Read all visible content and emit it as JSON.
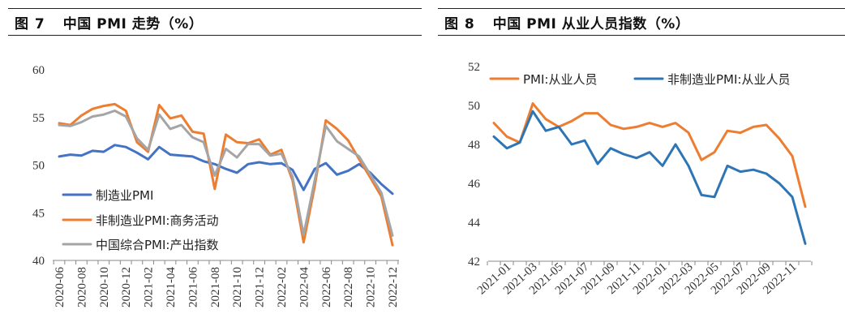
{
  "charts": [
    {
      "fig_num": "图 7",
      "title": "中国 PMI 走势（%）",
      "chart_data": {
        "type": "line",
        "ylim": [
          40,
          60
        ],
        "yticks": [
          40,
          45,
          50,
          55,
          60
        ],
        "xlabels": [
          "2020-06",
          "2020-08",
          "2020-10",
          "2020-12",
          "2021-02",
          "2021-04",
          "2021-06",
          "2021-08",
          "2021-10",
          "2021-12",
          "2022-02",
          "2022-04",
          "2022-06",
          "2022-08",
          "2022-10",
          "2022-12"
        ],
        "x": [
          "2020-06",
          "2020-07",
          "2020-08",
          "2020-09",
          "2020-10",
          "2020-11",
          "2020-12",
          "2021-01",
          "2021-02",
          "2021-03",
          "2021-04",
          "2021-05",
          "2021-06",
          "2021-07",
          "2021-08",
          "2021-09",
          "2021-10",
          "2021-11",
          "2021-12",
          "2022-01",
          "2022-02",
          "2022-03",
          "2022-04",
          "2022-05",
          "2022-06",
          "2022-07",
          "2022-08",
          "2022-09",
          "2022-10",
          "2022-11",
          "2022-12"
        ],
        "series": [
          {
            "name": "制造业PMI",
            "color": "#4472C4",
            "values": [
              50.9,
              51.1,
              51.0,
              51.5,
              51.4,
              52.1,
              51.9,
              51.3,
              50.6,
              51.9,
              51.1,
              51.0,
              50.9,
              50.4,
              50.1,
              49.6,
              49.2,
              50.1,
              50.3,
              50.1,
              50.2,
              49.5,
              47.4,
              49.6,
              50.2,
              49.0,
              49.4,
              50.1,
              49.2,
              48.0,
              47.0
            ]
          },
          {
            "name": "非制造业PMI:商务活动",
            "color": "#ED7D31",
            "values": [
              54.4,
              54.2,
              55.2,
              55.9,
              56.2,
              56.4,
              55.7,
              52.4,
              51.4,
              56.3,
              54.9,
              55.2,
              53.5,
              53.3,
              47.5,
              53.2,
              52.4,
              52.3,
              52.7,
              51.1,
              51.6,
              48.4,
              41.9,
              47.8,
              54.7,
              53.8,
              52.6,
              50.6,
              48.7,
              46.7,
              41.6
            ]
          },
          {
            "name": "中国综合PMI:产出指数",
            "color": "#A5A5A5",
            "values": [
              54.2,
              54.1,
              54.5,
              55.1,
              55.3,
              55.7,
              55.1,
              52.8,
              51.6,
              55.3,
              53.8,
              54.2,
              52.9,
              52.4,
              48.9,
              51.7,
              50.8,
              52.2,
              52.2,
              51.0,
              51.2,
              48.8,
              42.7,
              48.4,
              54.1,
              52.5,
              51.7,
              50.9,
              49.0,
              47.1,
              42.6
            ]
          }
        ]
      }
    },
    {
      "fig_num": "图 8",
      "title": "中国 PMI 从业人员指数（%）",
      "chart_data": {
        "type": "line",
        "ylim": [
          42,
          52
        ],
        "yticks": [
          42,
          44,
          46,
          48,
          50,
          52
        ],
        "xlabels": [
          "2021-01",
          "2021-03",
          "2021-05",
          "2021-07",
          "2021-09",
          "2021-11",
          "2022-01",
          "2022-03",
          "2022-05",
          "2022-07",
          "2022-09",
          "2022-11"
        ],
        "x": [
          "2020-12",
          "2021-01",
          "2021-02",
          "2021-03",
          "2021-04",
          "2021-05",
          "2021-06",
          "2021-07",
          "2021-08",
          "2021-09",
          "2021-10",
          "2021-11",
          "2021-12",
          "2022-01",
          "2022-02",
          "2022-03",
          "2022-04",
          "2022-05",
          "2022-06",
          "2022-07",
          "2022-08",
          "2022-09",
          "2022-10",
          "2022-11",
          "2022-12"
        ],
        "series": [
          {
            "name": "PMI:从业人员",
            "color": "#ED7D31",
            "values": [
              49.1,
              48.4,
              48.1,
              50.1,
              49.3,
              48.9,
              49.2,
              49.6,
              49.6,
              49.0,
              48.8,
              48.9,
              49.1,
              48.9,
              49.1,
              48.6,
              47.2,
              47.6,
              48.7,
              48.6,
              48.9,
              49.0,
              48.3,
              47.4,
              44.8
            ]
          },
          {
            "name": "非制造业PMI:从业人员",
            "color": "#2E75B6",
            "values": [
              48.4,
              47.8,
              48.1,
              49.7,
              48.7,
              48.9,
              48.0,
              48.2,
              47.0,
              47.8,
              47.5,
              47.3,
              47.6,
              46.9,
              48.0,
              46.9,
              45.4,
              45.3,
              46.9,
              46.6,
              46.7,
              46.5,
              46.0,
              45.3,
              42.9
            ]
          }
        ]
      }
    }
  ]
}
